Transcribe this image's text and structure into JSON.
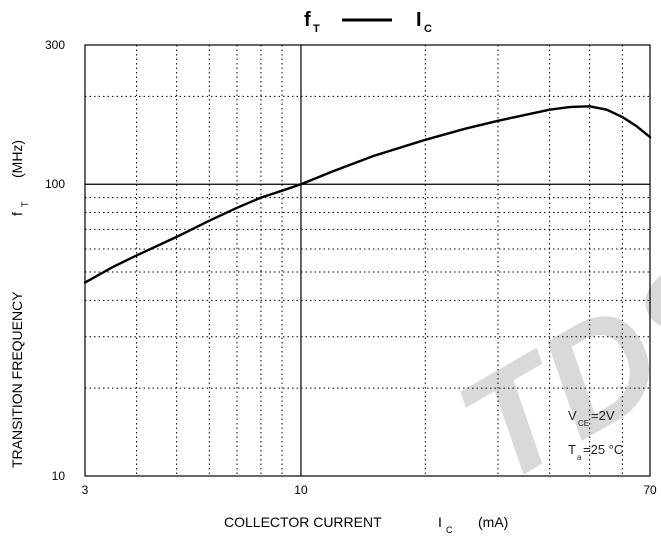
{
  "chart_data": {
    "type": "line",
    "title": {
      "main_1": "f",
      "sub_1": "T",
      "main_2": "I",
      "sub_2": "C"
    },
    "xlabel": {
      "text": "COLLECTOR CURRENT",
      "symbol": "I",
      "symbol_sub": "C",
      "unit": "(mA)"
    },
    "ylabel": {
      "text": "TRANSITION FREQUENCY",
      "symbol": "f",
      "symbol_sub": "T",
      "unit": "(MHz)"
    },
    "x_scale": "log",
    "y_scale": "log",
    "xlim": [
      3,
      70
    ],
    "ylim": [
      10,
      300
    ],
    "x_tick_labels": [
      "3",
      "10",
      "70"
    ],
    "y_tick_labels": [
      "10",
      "100",
      "300"
    ],
    "x_minor_gridlines": [
      4,
      5,
      6,
      7,
      8,
      9,
      20,
      30,
      40,
      50,
      60
    ],
    "y_minor_gridlines": [
      20,
      30,
      40,
      50,
      60,
      70,
      80,
      90,
      200
    ],
    "grid": true,
    "series": [
      {
        "x": [
          3,
          3.5,
          4,
          5,
          6,
          7,
          8,
          9,
          10,
          12,
          15,
          20,
          25,
          30,
          35,
          40,
          45,
          50,
          55,
          60,
          65,
          70
        ],
        "y": [
          46,
          52,
          57,
          66,
          75,
          83,
          90,
          95,
          100,
          111,
          125,
          142,
          155,
          165,
          173,
          180,
          184,
          185,
          180,
          170,
          158,
          145
        ]
      }
    ],
    "annotations": [
      {
        "main": "V",
        "sub": "CE",
        "rest": "=2V"
      },
      {
        "main": "T",
        "sub": "a",
        "rest": "=25 °C"
      }
    ]
  },
  "watermark": {
    "text": "TDS",
    "color": "#d9d9d9"
  },
  "colors": {
    "line": "#000000",
    "grid": "#000000",
    "background": "#ffffff"
  }
}
